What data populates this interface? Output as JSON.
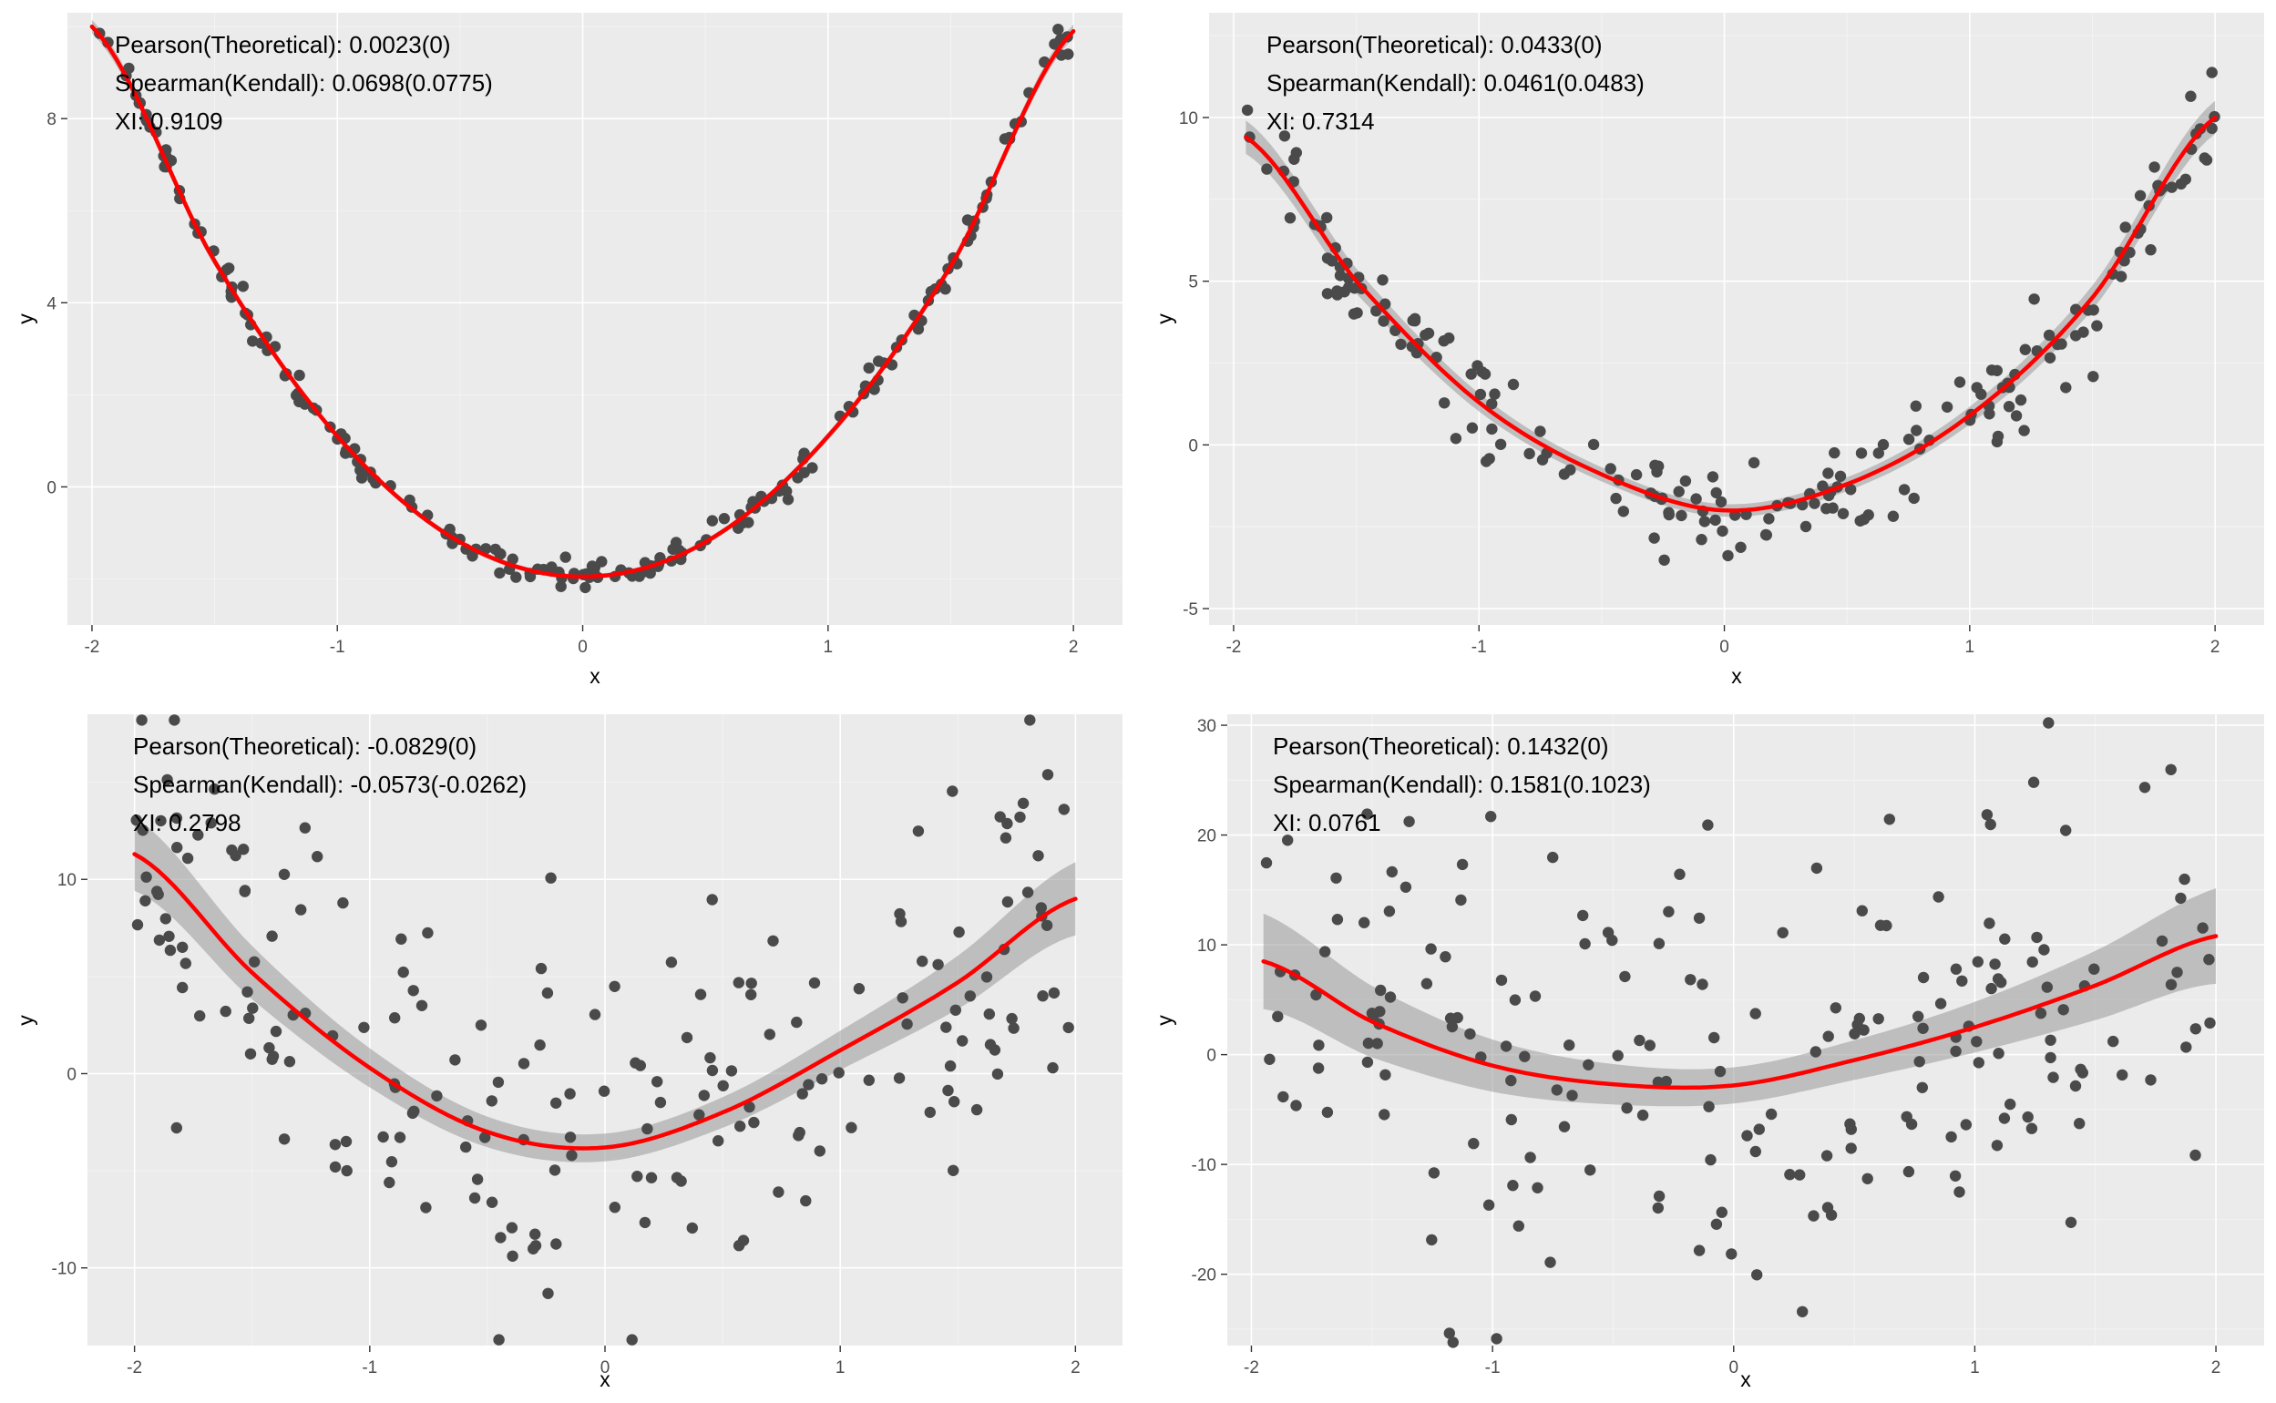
{
  "colors": {
    "panel": "#ebebeb",
    "grid": "#ffffff",
    "point": "#4a4a4a",
    "fit": "#ff0000",
    "ribbon": "#999999"
  },
  "chart_data": [
    {
      "type": "scatter",
      "title": "",
      "xlabel": "x",
      "ylabel": "y",
      "xlim": [
        -2.1,
        2.2
      ],
      "ylim": [
        -3.0,
        10.3
      ],
      "xticks": [
        -2,
        -1,
        0,
        1,
        2
      ],
      "xtick_labels": [
        "-2",
        "-1",
        "0",
        "1",
        "2"
      ],
      "yticks": [
        0,
        4,
        8
      ],
      "ytick_labels": [
        "0",
        "4",
        "8"
      ],
      "annotations": [
        "Pearson(Theoretical): 0.0023(0)",
        "Spearman(Kendall): 0.0698(0.0775)",
        "XI: 0.9109"
      ],
      "noise": 0.15,
      "band": 0.1,
      "fit_curve": {
        "x": [
          -2,
          -1.5,
          -1,
          -0.5,
          0,
          0.5,
          1,
          1.5,
          2
        ],
        "y": [
          10,
          4.9,
          1.1,
          -1.2,
          -1.95,
          -1.2,
          1.1,
          4.8,
          9.9
        ]
      }
    },
    {
      "type": "scatter",
      "title": "",
      "xlabel": "x",
      "ylabel": "y",
      "xlim": [
        -2.1,
        2.2
      ],
      "ylim": [
        -5.5,
        13.2
      ],
      "xticks": [
        -2,
        -1,
        0,
        1,
        2
      ],
      "xtick_labels": [
        "-2",
        "-1",
        "0",
        "1",
        "2"
      ],
      "yticks": [
        -5,
        0,
        5,
        10
      ],
      "ytick_labels": [
        "-5",
        "0",
        "5",
        "10"
      ],
      "annotations": [
        "Pearson(Theoretical): 0.0433(0)",
        "Spearman(Kendall): 0.0461(0.0483)",
        "XI: 0.7314"
      ],
      "noise": 0.8,
      "band": 0.35,
      "fit_curve": {
        "x": [
          -1.95,
          -1.5,
          -1,
          -0.5,
          0,
          0.5,
          1,
          1.5,
          2
        ],
        "y": [
          9.4,
          5.0,
          1.3,
          -0.9,
          -2.0,
          -1.2,
          0.9,
          4.5,
          10.0
        ]
      }
    },
    {
      "type": "scatter",
      "title": "",
      "xlabel": "x",
      "ylabel": "y",
      "xlim": [
        -2.2,
        2.2
      ],
      "ylim": [
        -14.0,
        18.5
      ],
      "xticks": [
        -2,
        -1,
        0,
        1,
        2
      ],
      "xtick_labels": [
        "-2",
        "-1",
        "0",
        "1",
        "2"
      ],
      "yticks": [
        -10,
        0,
        10
      ],
      "ytick_labels": [
        "-10",
        "0",
        "10"
      ],
      "annotations": [
        "Pearson(Theoretical): -0.0829(0)",
        "Spearman(Kendall): -0.0573(-0.0262)",
        "XI: 0.2798"
      ],
      "noise": 5.0,
      "band": 1.3,
      "fit_curve": {
        "x": [
          -2,
          -1.5,
          -1,
          -0.5,
          0,
          0.5,
          1,
          1.5,
          2
        ],
        "y": [
          11.3,
          5.2,
          0.3,
          -3.0,
          -3.8,
          -2.0,
          1.2,
          4.7,
          9.0
        ]
      }
    },
    {
      "type": "scatter",
      "title": "",
      "xlabel": "x",
      "ylabel": "y",
      "xlim": [
        -2.1,
        2.2
      ],
      "ylim": [
        -26.5,
        31.0
      ],
      "xticks": [
        -2,
        -1,
        0,
        1,
        2
      ],
      "xtick_labels": [
        "-2",
        "-1",
        "0",
        "1",
        "2"
      ],
      "yticks": [
        -20,
        -10,
        0,
        10,
        20,
        30
      ],
      "ytick_labels": [
        "-20",
        "-10",
        "0",
        "10",
        "20",
        "30"
      ],
      "annotations": [
        "Pearson(Theoretical): 0.1432(0)",
        "Spearman(Kendall): 0.1581(0.1023)",
        "XI: 0.0761"
      ],
      "noise": 10.0,
      "band": 3.0,
      "fit_curve": {
        "x": [
          -1.95,
          -1.5,
          -1,
          -0.5,
          0,
          0.5,
          1,
          1.5,
          2
        ],
        "y": [
          8.5,
          3.0,
          -1.0,
          -2.7,
          -2.8,
          -0.5,
          2.5,
          6.3,
          10.8
        ]
      }
    }
  ]
}
